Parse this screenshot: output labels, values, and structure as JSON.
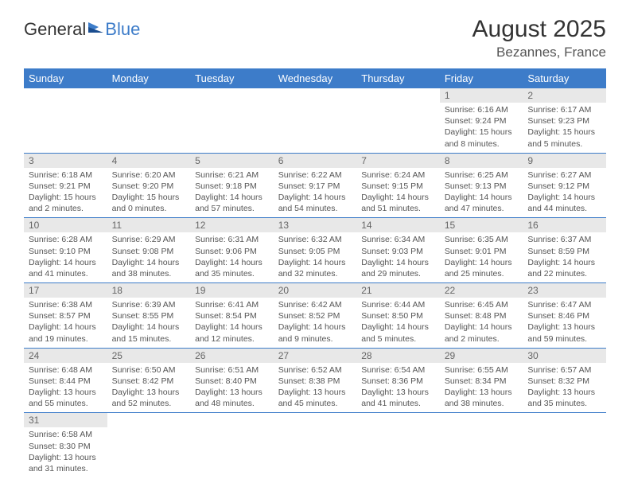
{
  "brand": {
    "part1": "General",
    "part2": "Blue"
  },
  "title": "August 2025",
  "location": "Bezannes, France",
  "colors": {
    "header_bg": "#3d7cc9",
    "header_text": "#ffffff",
    "daynum_bg": "#e8e8e8",
    "row_border": "#3d7cc9",
    "body_text": "#555555"
  },
  "day_labels": [
    "Sunday",
    "Monday",
    "Tuesday",
    "Wednesday",
    "Thursday",
    "Friday",
    "Saturday"
  ],
  "weeks": [
    [
      null,
      null,
      null,
      null,
      null,
      {
        "n": "1",
        "sr": "6:16 AM",
        "ss": "9:24 PM",
        "dl": "15 hours and 8 minutes."
      },
      {
        "n": "2",
        "sr": "6:17 AM",
        "ss": "9:23 PM",
        "dl": "15 hours and 5 minutes."
      }
    ],
    [
      {
        "n": "3",
        "sr": "6:18 AM",
        "ss": "9:21 PM",
        "dl": "15 hours and 2 minutes."
      },
      {
        "n": "4",
        "sr": "6:20 AM",
        "ss": "9:20 PM",
        "dl": "15 hours and 0 minutes."
      },
      {
        "n": "5",
        "sr": "6:21 AM",
        "ss": "9:18 PM",
        "dl": "14 hours and 57 minutes."
      },
      {
        "n": "6",
        "sr": "6:22 AM",
        "ss": "9:17 PM",
        "dl": "14 hours and 54 minutes."
      },
      {
        "n": "7",
        "sr": "6:24 AM",
        "ss": "9:15 PM",
        "dl": "14 hours and 51 minutes."
      },
      {
        "n": "8",
        "sr": "6:25 AM",
        "ss": "9:13 PM",
        "dl": "14 hours and 47 minutes."
      },
      {
        "n": "9",
        "sr": "6:27 AM",
        "ss": "9:12 PM",
        "dl": "14 hours and 44 minutes."
      }
    ],
    [
      {
        "n": "10",
        "sr": "6:28 AM",
        "ss": "9:10 PM",
        "dl": "14 hours and 41 minutes."
      },
      {
        "n": "11",
        "sr": "6:29 AM",
        "ss": "9:08 PM",
        "dl": "14 hours and 38 minutes."
      },
      {
        "n": "12",
        "sr": "6:31 AM",
        "ss": "9:06 PM",
        "dl": "14 hours and 35 minutes."
      },
      {
        "n": "13",
        "sr": "6:32 AM",
        "ss": "9:05 PM",
        "dl": "14 hours and 32 minutes."
      },
      {
        "n": "14",
        "sr": "6:34 AM",
        "ss": "9:03 PM",
        "dl": "14 hours and 29 minutes."
      },
      {
        "n": "15",
        "sr": "6:35 AM",
        "ss": "9:01 PM",
        "dl": "14 hours and 25 minutes."
      },
      {
        "n": "16",
        "sr": "6:37 AM",
        "ss": "8:59 PM",
        "dl": "14 hours and 22 minutes."
      }
    ],
    [
      {
        "n": "17",
        "sr": "6:38 AM",
        "ss": "8:57 PM",
        "dl": "14 hours and 19 minutes."
      },
      {
        "n": "18",
        "sr": "6:39 AM",
        "ss": "8:55 PM",
        "dl": "14 hours and 15 minutes."
      },
      {
        "n": "19",
        "sr": "6:41 AM",
        "ss": "8:54 PM",
        "dl": "14 hours and 12 minutes."
      },
      {
        "n": "20",
        "sr": "6:42 AM",
        "ss": "8:52 PM",
        "dl": "14 hours and 9 minutes."
      },
      {
        "n": "21",
        "sr": "6:44 AM",
        "ss": "8:50 PM",
        "dl": "14 hours and 5 minutes."
      },
      {
        "n": "22",
        "sr": "6:45 AM",
        "ss": "8:48 PM",
        "dl": "14 hours and 2 minutes."
      },
      {
        "n": "23",
        "sr": "6:47 AM",
        "ss": "8:46 PM",
        "dl": "13 hours and 59 minutes."
      }
    ],
    [
      {
        "n": "24",
        "sr": "6:48 AM",
        "ss": "8:44 PM",
        "dl": "13 hours and 55 minutes."
      },
      {
        "n": "25",
        "sr": "6:50 AM",
        "ss": "8:42 PM",
        "dl": "13 hours and 52 minutes."
      },
      {
        "n": "26",
        "sr": "6:51 AM",
        "ss": "8:40 PM",
        "dl": "13 hours and 48 minutes."
      },
      {
        "n": "27",
        "sr": "6:52 AM",
        "ss": "8:38 PM",
        "dl": "13 hours and 45 minutes."
      },
      {
        "n": "28",
        "sr": "6:54 AM",
        "ss": "8:36 PM",
        "dl": "13 hours and 41 minutes."
      },
      {
        "n": "29",
        "sr": "6:55 AM",
        "ss": "8:34 PM",
        "dl": "13 hours and 38 minutes."
      },
      {
        "n": "30",
        "sr": "6:57 AM",
        "ss": "8:32 PM",
        "dl": "13 hours and 35 minutes."
      }
    ],
    [
      {
        "n": "31",
        "sr": "6:58 AM",
        "ss": "8:30 PM",
        "dl": "13 hours and 31 minutes."
      },
      null,
      null,
      null,
      null,
      null,
      null
    ]
  ],
  "labels": {
    "sunrise": "Sunrise: ",
    "sunset": "Sunset: ",
    "daylight": "Daylight: "
  }
}
